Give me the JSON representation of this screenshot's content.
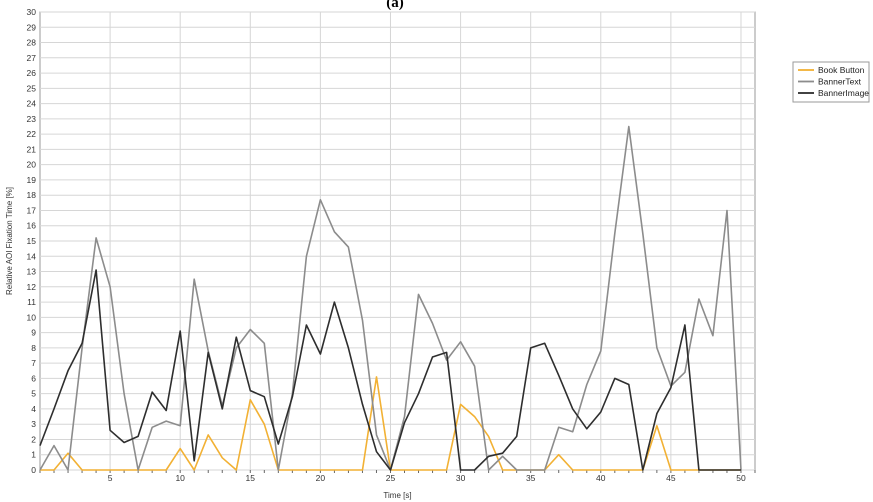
{
  "chart_data": {
    "type": "line",
    "title": "(a)",
    "xlabel": "Time [s]",
    "ylabel": "Relative AOI Fixation Time [%]",
    "xlim": [
      0,
      51
    ],
    "ylim": [
      0,
      30
    ],
    "xticks": [
      5,
      10,
      15,
      20,
      25,
      30,
      35,
      40,
      45,
      50
    ],
    "yticks": [
      0,
      1,
      2,
      3,
      4,
      5,
      6,
      7,
      8,
      9,
      10,
      11,
      12,
      13,
      14,
      15,
      16,
      17,
      18,
      19,
      20,
      21,
      22,
      23,
      24,
      25,
      26,
      27,
      28,
      29,
      30
    ],
    "grid": true,
    "legend_position": "right",
    "series": [
      {
        "name": "Book Button",
        "color": "#f2b134",
        "x": [
          0,
          1,
          2,
          3,
          4,
          5,
          6,
          7,
          8,
          9,
          10,
          11,
          12,
          13,
          14,
          15,
          16,
          17,
          18,
          19,
          20,
          21,
          22,
          23,
          24,
          25,
          26,
          27,
          28,
          29,
          30,
          31,
          32,
          33,
          34,
          35,
          36,
          37,
          38,
          39,
          40,
          41,
          42,
          43,
          44,
          45,
          46,
          47,
          48,
          49,
          50
        ],
        "values": [
          0,
          0,
          1.1,
          0,
          0,
          0,
          0,
          0,
          0,
          0,
          1.4,
          0,
          2.3,
          0.8,
          0,
          4.6,
          3,
          0,
          0,
          0,
          0,
          0,
          0,
          0,
          6.1,
          0,
          0,
          0,
          0,
          0,
          4.3,
          3.5,
          2.2,
          0,
          0,
          0,
          0,
          1,
          0,
          0,
          0,
          0,
          0,
          0,
          2.9,
          0,
          0,
          0,
          0,
          0,
          0
        ]
      },
      {
        "name": "BannerText",
        "color": "#8c8c8c",
        "x": [
          0,
          1,
          2,
          3,
          4,
          5,
          6,
          7,
          8,
          9,
          10,
          11,
          12,
          13,
          14,
          15,
          16,
          17,
          18,
          19,
          20,
          21,
          22,
          23,
          24,
          25,
          26,
          27,
          28,
          29,
          30,
          31,
          32,
          33,
          34,
          35,
          36,
          37,
          38,
          39,
          40,
          41,
          42,
          43,
          44,
          45,
          46,
          47,
          48,
          49,
          50
        ],
        "values": [
          0,
          1.6,
          0,
          8,
          15.2,
          12,
          5,
          0,
          2.8,
          3.2,
          2.9,
          12.5,
          7.8,
          4.2,
          8,
          9.2,
          8.3,
          0,
          5,
          14,
          17.7,
          15.6,
          14.6,
          9.8,
          2.3,
          0,
          3.5,
          11.5,
          9.6,
          7.2,
          8.4,
          6.8,
          0,
          0.9,
          0,
          0,
          0,
          2.8,
          2.5,
          5.6,
          7.8,
          15.5,
          22.5,
          15.5,
          8,
          5.5,
          6.4,
          11.2,
          8.8,
          17,
          0
        ]
      },
      {
        "name": "BannerImage",
        "color": "#2e2e2e",
        "x": [
          0,
          1,
          2,
          3,
          4,
          5,
          6,
          7,
          8,
          9,
          10,
          11,
          12,
          13,
          14,
          15,
          16,
          17,
          18,
          19,
          20,
          21,
          22,
          23,
          24,
          25,
          26,
          27,
          28,
          29,
          30,
          31,
          32,
          33,
          34,
          35,
          36,
          37,
          38,
          39,
          40,
          41,
          42,
          43,
          44,
          45,
          46,
          47,
          48,
          49,
          50
        ],
        "values": [
          1.6,
          4,
          6.5,
          8.3,
          13.1,
          2.6,
          1.8,
          2.2,
          5.1,
          3.9,
          9.1,
          0.6,
          7.7,
          4,
          8.7,
          5.2,
          4.8,
          1.7,
          4.8,
          9.5,
          7.6,
          11,
          8,
          4.3,
          1.2,
          0,
          3.1,
          5,
          7.4,
          7.7,
          0,
          0,
          0.9,
          1.1,
          2.2,
          8,
          8.3,
          6.2,
          4,
          2.7,
          3.8,
          6,
          5.6,
          0,
          3.7,
          5.4,
          9.5,
          0,
          0,
          0,
          0
        ]
      }
    ]
  }
}
